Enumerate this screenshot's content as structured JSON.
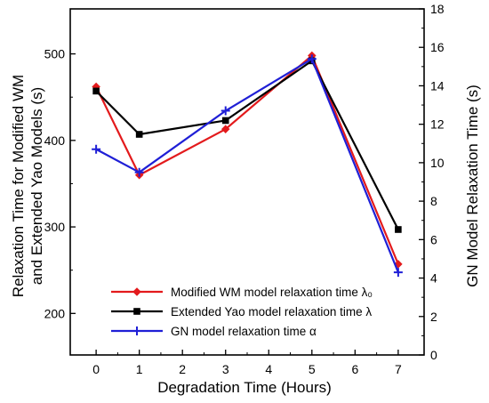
{
  "chart_data": {
    "type": "line",
    "title": "",
    "xlabel": "Degradation Time (Hours)",
    "ylabel_left": [
      "Relaxation Time for Modified WM",
      "and Extended Yao Models (s)"
    ],
    "ylabel_right": "GN Model Relaxation Time (s)",
    "xlim": [
      -0.6,
      7.6
    ],
    "ylim_left": [
      152,
      552
    ],
    "ylim_right": [
      0,
      18
    ],
    "xticks": [
      0,
      1,
      2,
      3,
      4,
      5,
      6,
      7
    ],
    "yticks_left": [
      200,
      300,
      400,
      500
    ],
    "yticks_right": [
      0,
      2,
      4,
      6,
      8,
      10,
      12,
      14,
      16,
      18
    ],
    "grid": false,
    "legend_position": "bottom-center",
    "series": [
      {
        "name": "Modified WM model relaxation time λ₀",
        "axis": "left",
        "color": "#e31a1c",
        "marker": "diamond",
        "x": [
          0,
          1,
          3,
          5,
          7
        ],
        "y": [
          462,
          360,
          413,
          498,
          257
        ]
      },
      {
        "name": "Extended Yao model relaxation time λ",
        "axis": "left",
        "color": "#000000",
        "marker": "square",
        "x": [
          0,
          1,
          3,
          5,
          7
        ],
        "y": [
          457,
          407,
          423,
          492,
          297
        ]
      },
      {
        "name": "GN model relaxation time α",
        "axis": "right",
        "color": "#1f1fd6",
        "marker": "plus",
        "x": [
          0,
          1,
          3,
          5,
          7
        ],
        "y": [
          10.7,
          9.5,
          12.7,
          15.4,
          4.3
        ]
      }
    ]
  }
}
